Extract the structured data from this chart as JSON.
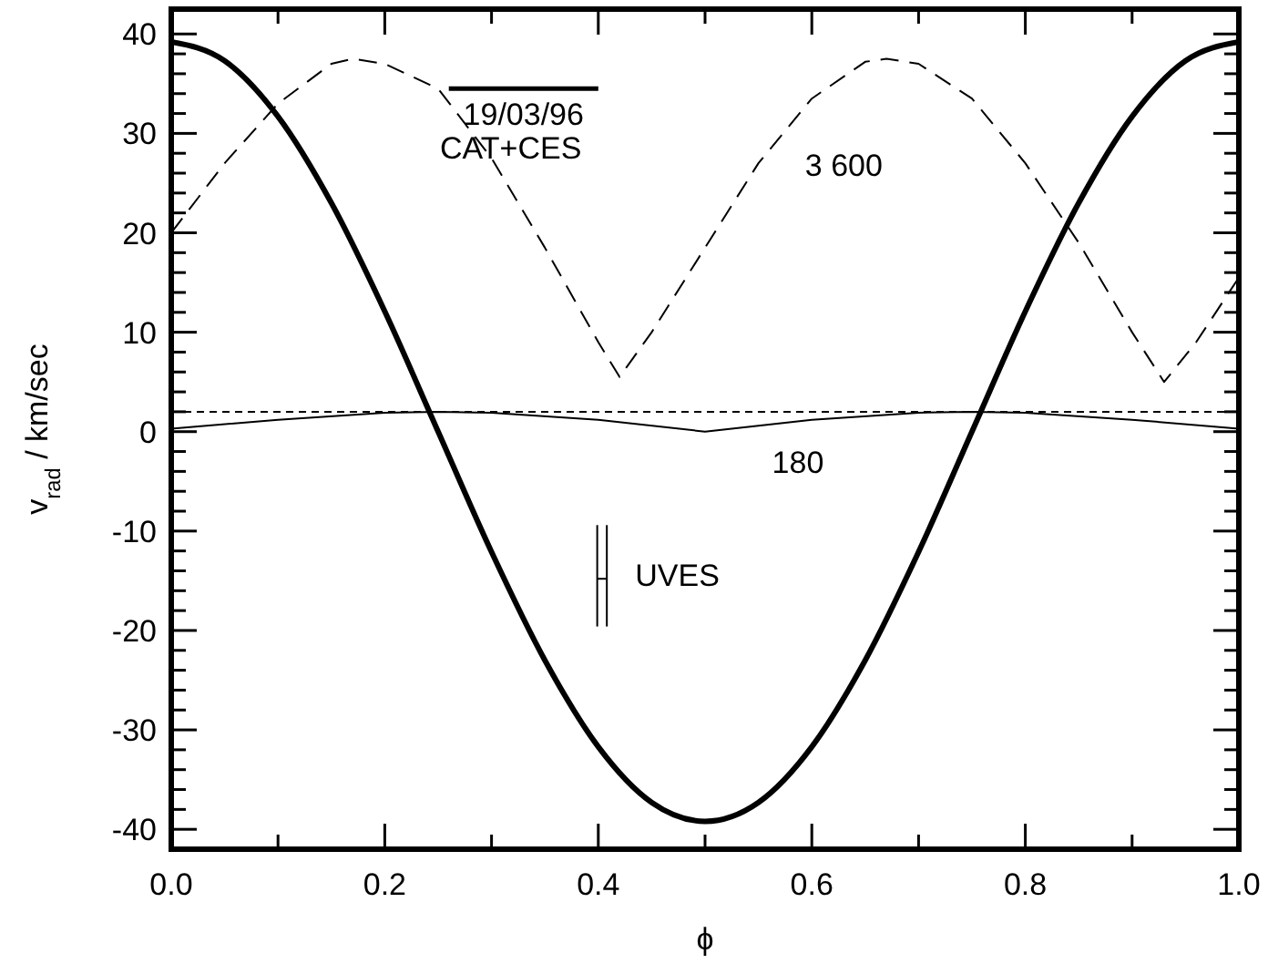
{
  "chart_data": {
    "type": "line",
    "xlabel": "ϕ",
    "ylabel": "v$_{rad}$ / km/sec",
    "xlim": [
      0,
      1
    ],
    "ylim": [
      -42,
      42.5
    ],
    "xticks": [
      {
        "value": 0,
        "label": "0.0"
      },
      {
        "value": 0.1,
        "label": null
      },
      {
        "value": 0.2,
        "label": "0.2"
      },
      {
        "value": 0.3,
        "label": null
      },
      {
        "value": 0.4,
        "label": "0.4"
      },
      {
        "value": 0.5,
        "label": null
      },
      {
        "value": 0.6,
        "label": "0.6"
      },
      {
        "value": 0.7,
        "label": null
      },
      {
        "value": 0.8,
        "label": "0.8"
      },
      {
        "value": 0.9,
        "label": null
      },
      {
        "value": 1,
        "label": "1.0"
      }
    ],
    "yticks": [
      -40,
      {
        "value": -38,
        "label": null
      },
      {
        "value": -36,
        "label": null
      },
      {
        "value": -34,
        "label": null
      },
      {
        "value": -32,
        "label": null
      },
      -30,
      {
        "value": -28,
        "label": null
      },
      {
        "value": -26,
        "label": null
      },
      {
        "value": -24,
        "label": null
      },
      {
        "value": -22,
        "label": null
      },
      -20,
      {
        "value": -18,
        "label": null
      },
      {
        "value": -16,
        "label": null
      },
      {
        "value": -14,
        "label": null
      },
      {
        "value": -12,
        "label": null
      },
      -10,
      {
        "value": -8,
        "label": null
      },
      {
        "value": -6,
        "label": null
      },
      {
        "value": -4,
        "label": null
      },
      {
        "value": -2,
        "label": null
      },
      0,
      {
        "value": 2,
        "label": null
      },
      {
        "value": 4,
        "label": null
      },
      {
        "value": 6,
        "label": null
      },
      {
        "value": 8,
        "label": null
      },
      10,
      {
        "value": 12,
        "label": null
      },
      {
        "value": 14,
        "label": null
      },
      {
        "value": 16,
        "label": null
      },
      {
        "value": 18,
        "label": null
      },
      20,
      {
        "value": 22,
        "label": null
      },
      {
        "value": 24,
        "label": null
      },
      {
        "value": 26,
        "label": null
      },
      {
        "value": 28,
        "label": null
      },
      30,
      {
        "value": 32,
        "label": null
      },
      {
        "value": 34,
        "label": null
      },
      {
        "value": 36,
        "label": null
      },
      {
        "value": 38,
        "label": null
      },
      40
    ],
    "grid": false,
    "marker": "none",
    "series": [
      {
        "color": "#000000",
        "line_style": "solid",
        "x": [
          0,
          0.05,
          0.1,
          0.15,
          0.2,
          0.25,
          0.3,
          0.35,
          0.4,
          0.45,
          0.5,
          0.55,
          0.6,
          0.65,
          0.7,
          0.75,
          0.8,
          0.85,
          0.9,
          0.95,
          1
        ],
        "values": [
          39.2,
          37.3,
          31.7,
          23,
          12.1,
          0,
          -12.1,
          -23,
          -31.7,
          -37.3,
          -39.2,
          -37.3,
          -31.7,
          -23,
          -12.1,
          0,
          12.1,
          23,
          31.7,
          37.3,
          39.2
        ]
      },
      {
        "color": "#000000",
        "line_style": "dashed",
        "x": [
          0,
          0.05,
          0.1,
          0.15,
          0.17,
          0.2,
          0.25,
          0.3,
          0.35,
          0.4,
          0.42,
          0.45,
          0.5,
          0.55,
          0.6,
          0.65,
          0.67,
          0.7,
          0.75,
          0.8,
          0.85,
          0.9,
          0.93,
          0.96,
          1
        ],
        "values": [
          20,
          27,
          33,
          37,
          37.5,
          37,
          34.5,
          27.5,
          18.5,
          9,
          5.5,
          10,
          18.5,
          27,
          33.5,
          37.2,
          37.5,
          37,
          33.5,
          27,
          19,
          10,
          5,
          9,
          15.5
        ]
      },
      {
        "color": "#000000",
        "line_style": "solid",
        "x": [
          0,
          0.1,
          0.2,
          0.25,
          0.3,
          0.4,
          0.5,
          0.6,
          0.7,
          0.75,
          0.8,
          0.9,
          1
        ],
        "values": [
          0.3,
          1.2,
          1.9,
          2,
          1.9,
          1.2,
          0,
          1.2,
          1.9,
          2,
          1.9,
          1.2,
          0.3
        ]
      },
      {
        "color": "#000000",
        "line_style": "solid",
        "x": [
          0.26,
          0.4
        ],
        "values": [
          34.5,
          34.5
        ]
      },
      {
        "color": "#000000",
        "line_style": "solid",
        "x": [
          0.399,
          0.399
        ],
        "values": [
          -9.4,
          -19.6
        ]
      },
      {
        "color": "#000000",
        "line_style": "solid",
        "x": [
          0.408,
          0.408
        ],
        "values": [
          -9.4,
          -19.6
        ]
      },
      {
        "color": "#000000",
        "line_style": "solid",
        "x": [
          0.399,
          0.408
        ],
        "values": [
          -14.8,
          -14.8
        ]
      }
    ],
    "ref_lines": [
      {
        "axis": "y",
        "value": 2,
        "color": "#000000",
        "line_style": "dashed"
      }
    ],
    "annotations": [
      "19/03/96",
      "CAT+CES",
      "3 600",
      "180",
      "UVES"
    ]
  }
}
